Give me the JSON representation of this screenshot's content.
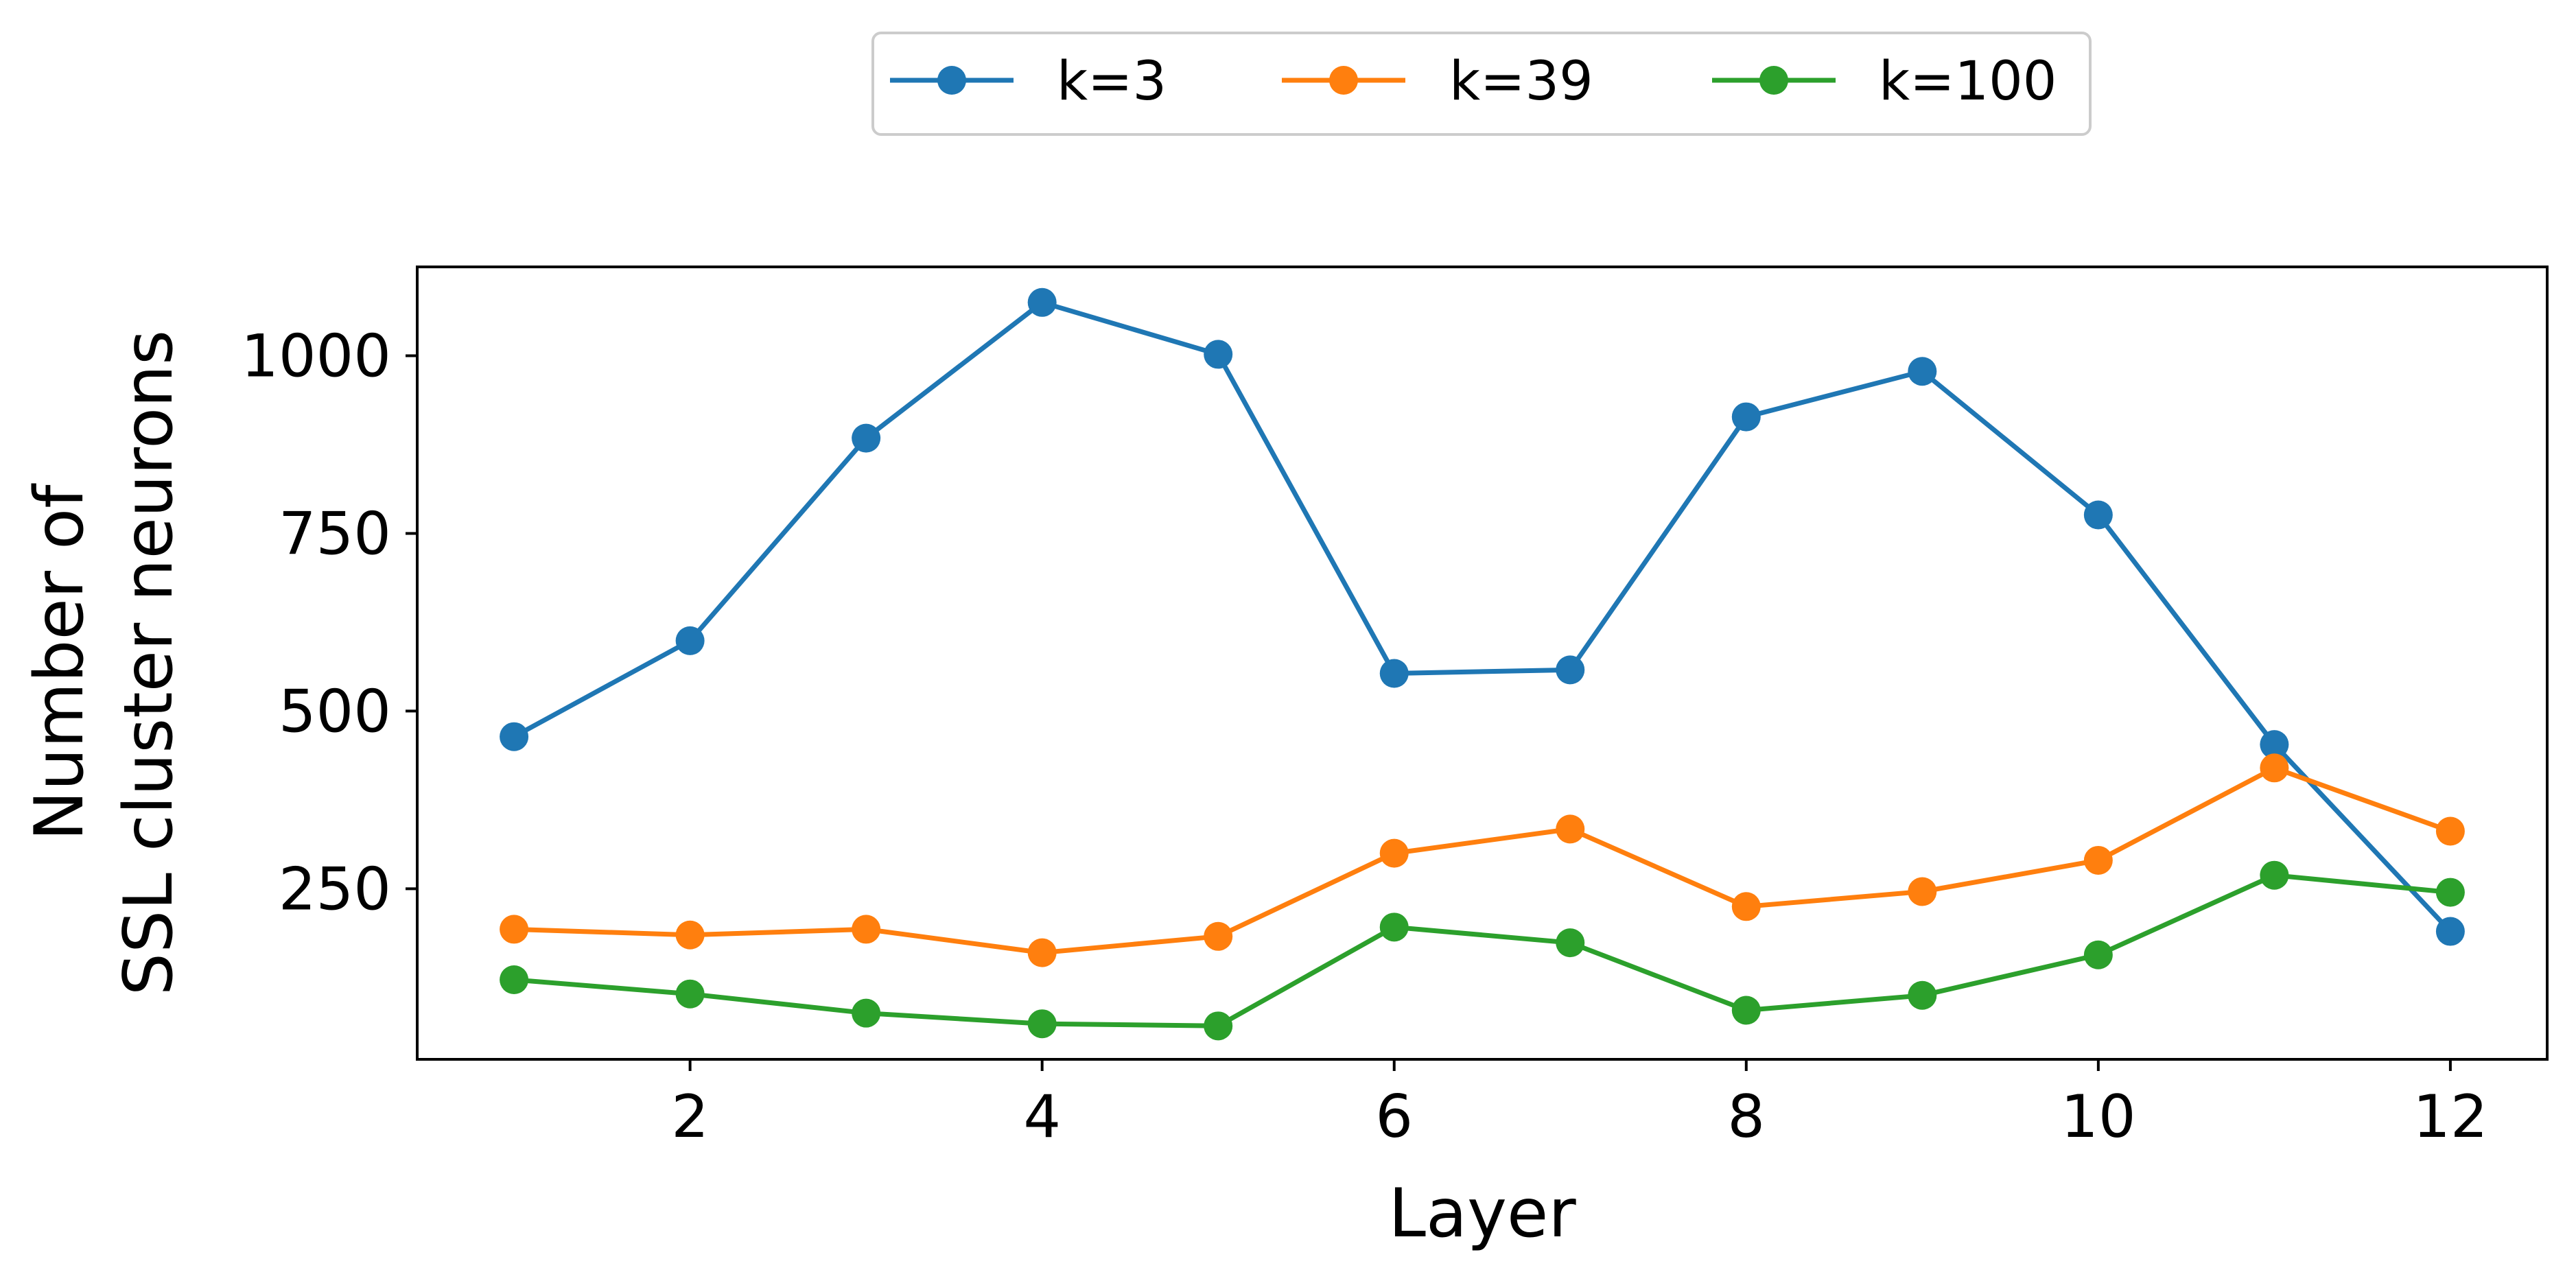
{
  "chart_data": {
    "type": "line",
    "title": "",
    "xlabel": "Layer",
    "ylabel_lines": [
      "Number of",
      "SSL cluster neurons"
    ],
    "x": [
      1,
      2,
      3,
      4,
      5,
      6,
      7,
      8,
      9,
      10,
      11,
      12
    ],
    "xlim": [
      0.45,
      12.55
    ],
    "ylim": [
      10,
      1125
    ],
    "xticks": [
      2,
      4,
      6,
      8,
      10,
      12
    ],
    "xtick_labels": [
      "2",
      "4",
      "6",
      "8",
      "10",
      "12"
    ],
    "yticks": [
      250,
      500,
      750,
      1000
    ],
    "ytick_labels": [
      "250",
      "500",
      "750",
      "1000"
    ],
    "grid": false,
    "legend_position": "top-center, outside plot, one row",
    "series": [
      {
        "name": "k=3",
        "color": "#1f77b4",
        "marker": "circle",
        "values": [
          464,
          599,
          884,
          1075,
          1002,
          553,
          558,
          914,
          978,
          776,
          453,
          190
        ]
      },
      {
        "name": "k=39",
        "color": "#ff7f0e",
        "marker": "circle",
        "values": [
          193,
          185,
          193,
          160,
          183,
          300,
          334,
          225,
          246,
          290,
          420,
          331
        ]
      },
      {
        "name": "k=100",
        "color": "#2ca02c",
        "marker": "circle",
        "values": [
          122,
          102,
          75,
          60,
          57,
          196,
          174,
          79,
          100,
          157,
          269,
          245
        ]
      }
    ]
  }
}
